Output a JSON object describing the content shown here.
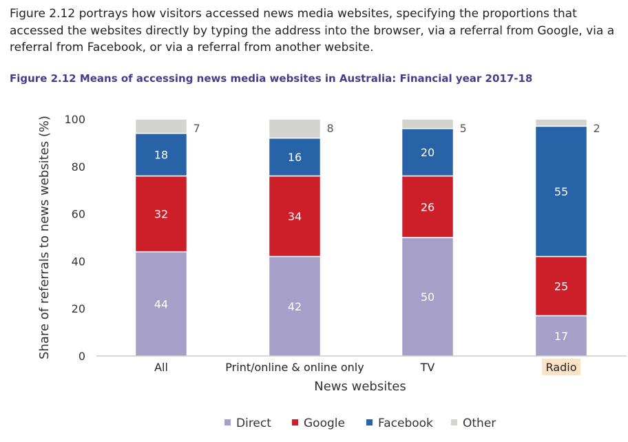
{
  "intro_text": "Figure 2.12 portrays how visitors accessed news media websites, specifying the proportions that accessed the websites directly by typing the address into the browser, via a referral from Google, via a referral from Facebook, or via a referral from another website.",
  "figure_title": "Figure 2.12  Means of accessing news media websites in Australia: Financial year 2017-18",
  "colors": {
    "Direct": "#a69fc8",
    "Google": "#cc1f2a",
    "Facebook": "#2863a8",
    "Other": "#d3d3d0",
    "highlight": "#fde3c6"
  },
  "chart_data": {
    "type": "bar",
    "stacked": true,
    "categories": [
      "All",
      "Print/online & online only",
      "TV",
      "Radio"
    ],
    "series": [
      {
        "name": "Direct",
        "values": [
          44,
          42,
          50,
          17
        ]
      },
      {
        "name": "Google",
        "values": [
          32,
          34,
          26,
          25
        ]
      },
      {
        "name": "Facebook",
        "values": [
          18,
          16,
          20,
          55
        ]
      },
      {
        "name": "Other",
        "values": [
          7,
          8,
          5,
          2
        ]
      }
    ],
    "xlabel": "News websites",
    "ylabel": "Share of referrals to news websites (%)",
    "ylim": [
      0,
      100
    ],
    "yticks": [
      0,
      20,
      40,
      60,
      80,
      100
    ],
    "grid": false,
    "legend_position": "bottom",
    "highlighted_category": "Radio"
  }
}
